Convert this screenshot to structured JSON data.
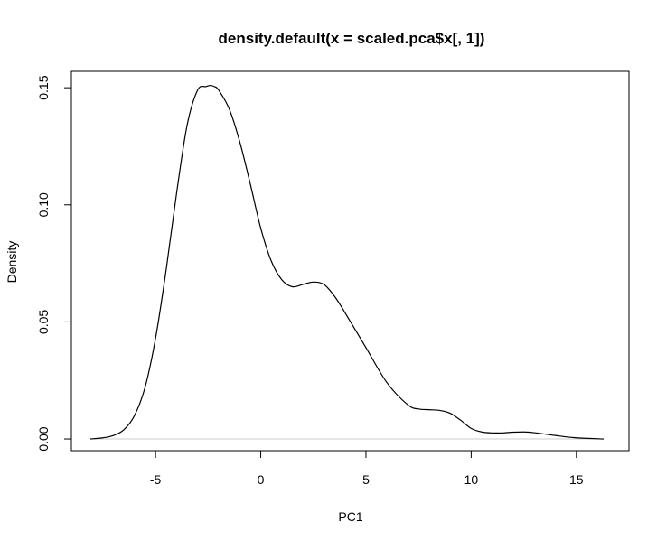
{
  "chart_data": {
    "type": "line",
    "title": "density.default(x = scaled.pca$x[, 1])",
    "xlabel": "PC1",
    "ylabel": "Density",
    "xlim": [
      -9,
      17.5
    ],
    "ylim": [
      -0.005,
      0.157
    ],
    "x_ticks": [
      -5,
      0,
      5,
      10,
      15
    ],
    "x_tick_labels": [
      "-5",
      "0",
      "5",
      "10",
      "15"
    ],
    "y_ticks": [
      0.0,
      0.05,
      0.1,
      0.15
    ],
    "y_tick_labels": [
      "0.00",
      "0.05",
      "0.10",
      "0.15"
    ],
    "baseline_y": 0,
    "grid": false,
    "legend": "none",
    "colors": {
      "line": "#000000",
      "baseline": "#cccccc",
      "frame": "#000000"
    },
    "series": [
      {
        "x": [
          -8.1,
          -7.5,
          -7.0,
          -6.5,
          -6.0,
          -5.5,
          -5.0,
          -4.5,
          -4.0,
          -3.5,
          -3.0,
          -2.6,
          -2.4,
          -2.2,
          -2.0,
          -1.5,
          -1.0,
          -0.5,
          0.0,
          0.5,
          1.0,
          1.5,
          2.0,
          2.5,
          3.0,
          3.5,
          4.0,
          5.0,
          6.0,
          7.0,
          7.5,
          8.0,
          8.5,
          9.0,
          9.5,
          10.0,
          10.5,
          11.0,
          11.5,
          12.0,
          12.5,
          13.0,
          14.0,
          15.0,
          16.3
        ],
        "y": [
          0.0,
          0.0005,
          0.0015,
          0.004,
          0.01,
          0.022,
          0.043,
          0.072,
          0.105,
          0.134,
          0.149,
          0.1505,
          0.151,
          0.1505,
          0.149,
          0.141,
          0.127,
          0.109,
          0.09,
          0.076,
          0.068,
          0.065,
          0.066,
          0.067,
          0.066,
          0.061,
          0.054,
          0.039,
          0.024,
          0.0145,
          0.0128,
          0.0125,
          0.0122,
          0.011,
          0.008,
          0.0045,
          0.003,
          0.0026,
          0.0026,
          0.0029,
          0.003,
          0.0027,
          0.0015,
          0.0005,
          0.0
        ]
      }
    ]
  }
}
